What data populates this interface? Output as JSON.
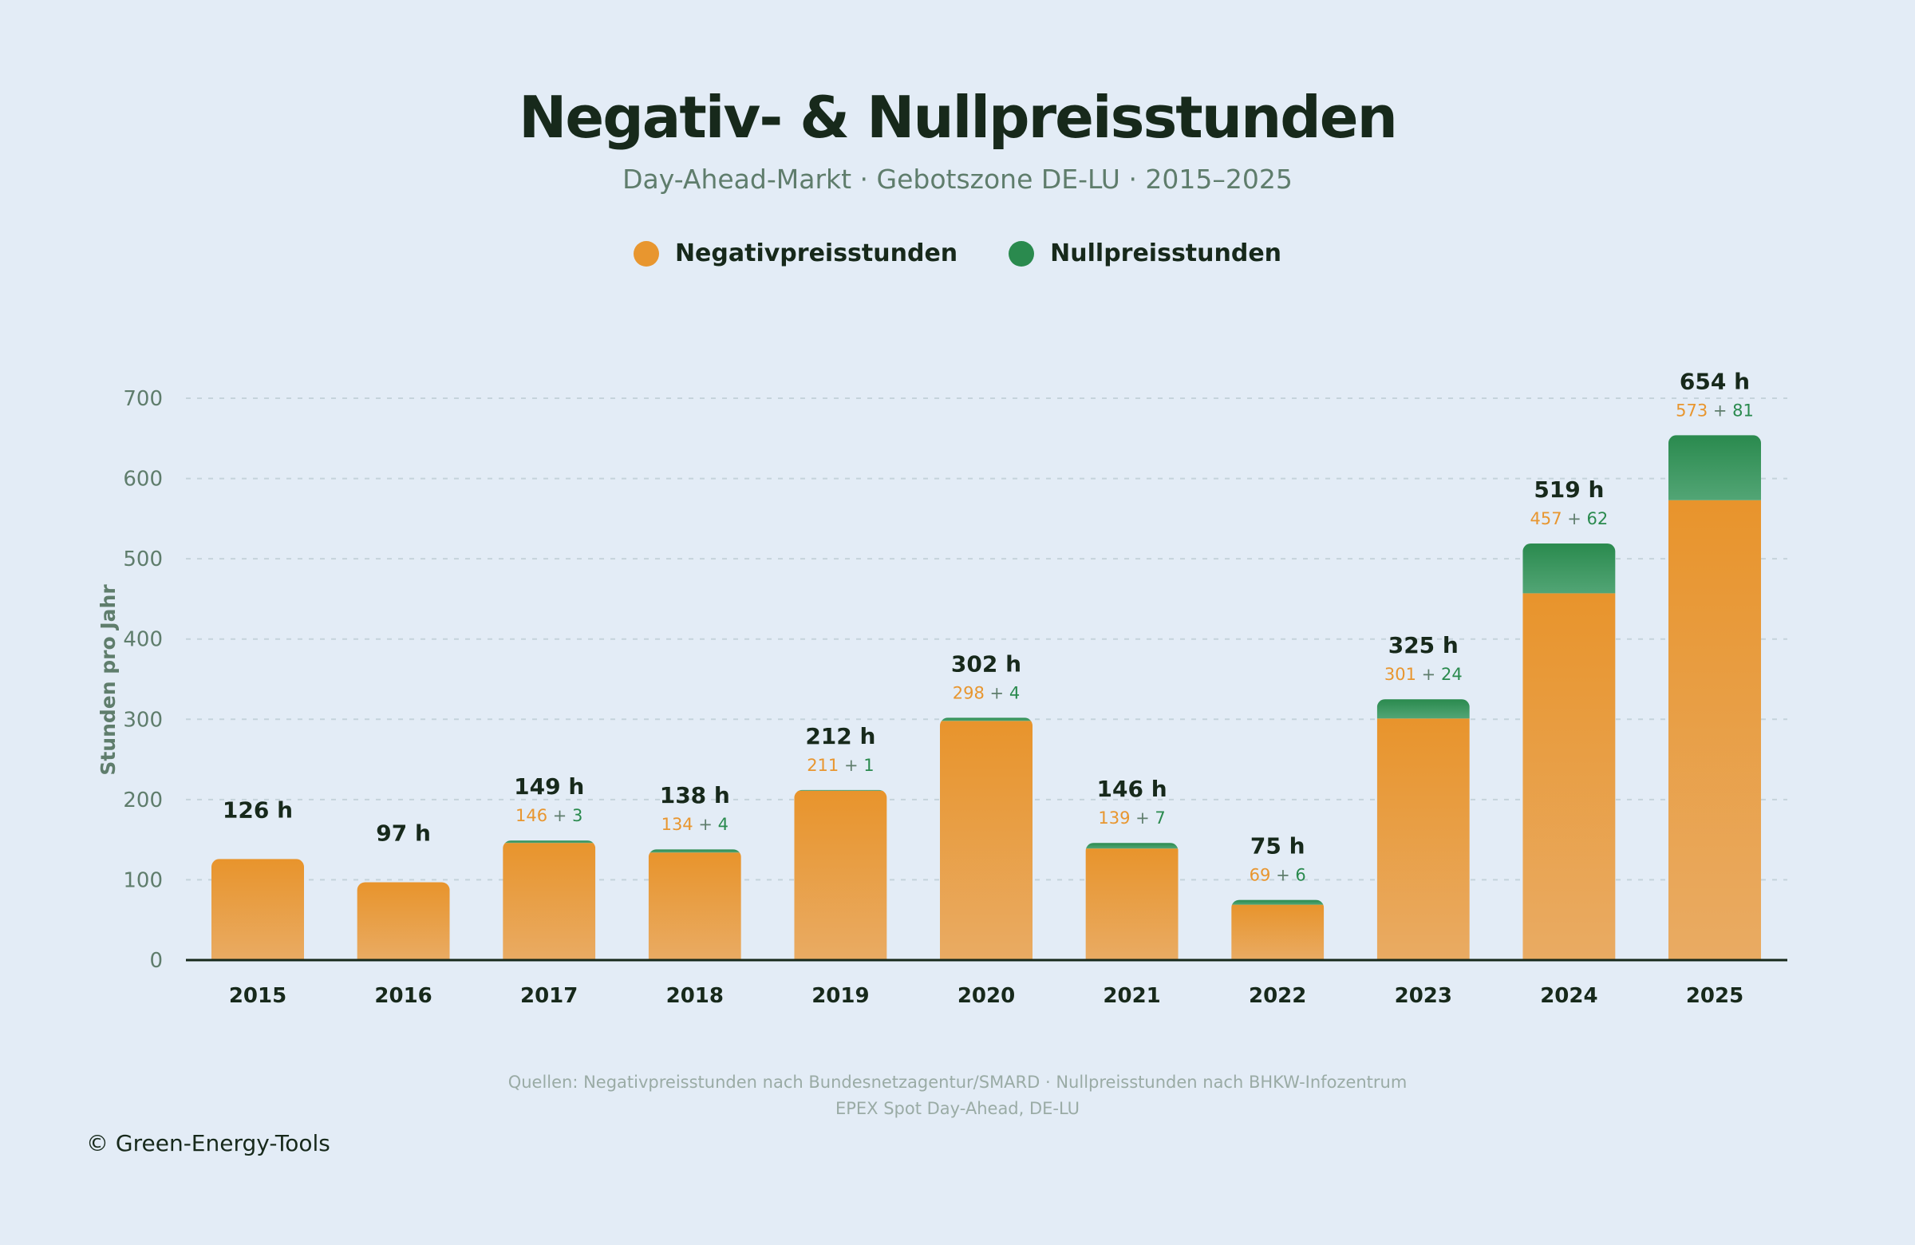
{
  "chart_data": {
    "type": "bar",
    "stacked": true,
    "title": "Negativ- & Nullpreisstunden",
    "subtitle": "Day-Ahead-Markt · Gebotszone DE-LU · 2015–2025",
    "ylabel": "Stunden pro Jahr",
    "xlabel": "",
    "ylim": [
      0,
      700
    ],
    "yticks": [
      0,
      100,
      200,
      300,
      400,
      500,
      600,
      700
    ],
    "grid": true,
    "legend_position": "top-center",
    "categories": [
      "2015",
      "2016",
      "2017",
      "2018",
      "2019",
      "2020",
      "2021",
      "2022",
      "2023",
      "2024",
      "2025"
    ],
    "series": [
      {
        "name": "Negativpreisstunden",
        "color": "#e8962f",
        "values": [
          126,
          97,
          146,
          134,
          211,
          298,
          139,
          69,
          301,
          457,
          573
        ]
      },
      {
        "name": "Nullpreisstunden",
        "color": "#2a8a4e",
        "values": [
          0,
          0,
          3,
          4,
          1,
          4,
          7,
          6,
          24,
          62,
          81
        ]
      }
    ],
    "total_suffix": " h",
    "breakdown_separator": " + "
  },
  "footer": {
    "sources_line1": "Quellen: Negativpreisstunden nach Bundesnetzagentur/SMARD · Nullpreisstunden nach BHKW-Infozentrum",
    "sources_line2": "EPEX Spot Day-Ahead, DE-LU",
    "copyright": "© Green-Energy-Tools"
  }
}
